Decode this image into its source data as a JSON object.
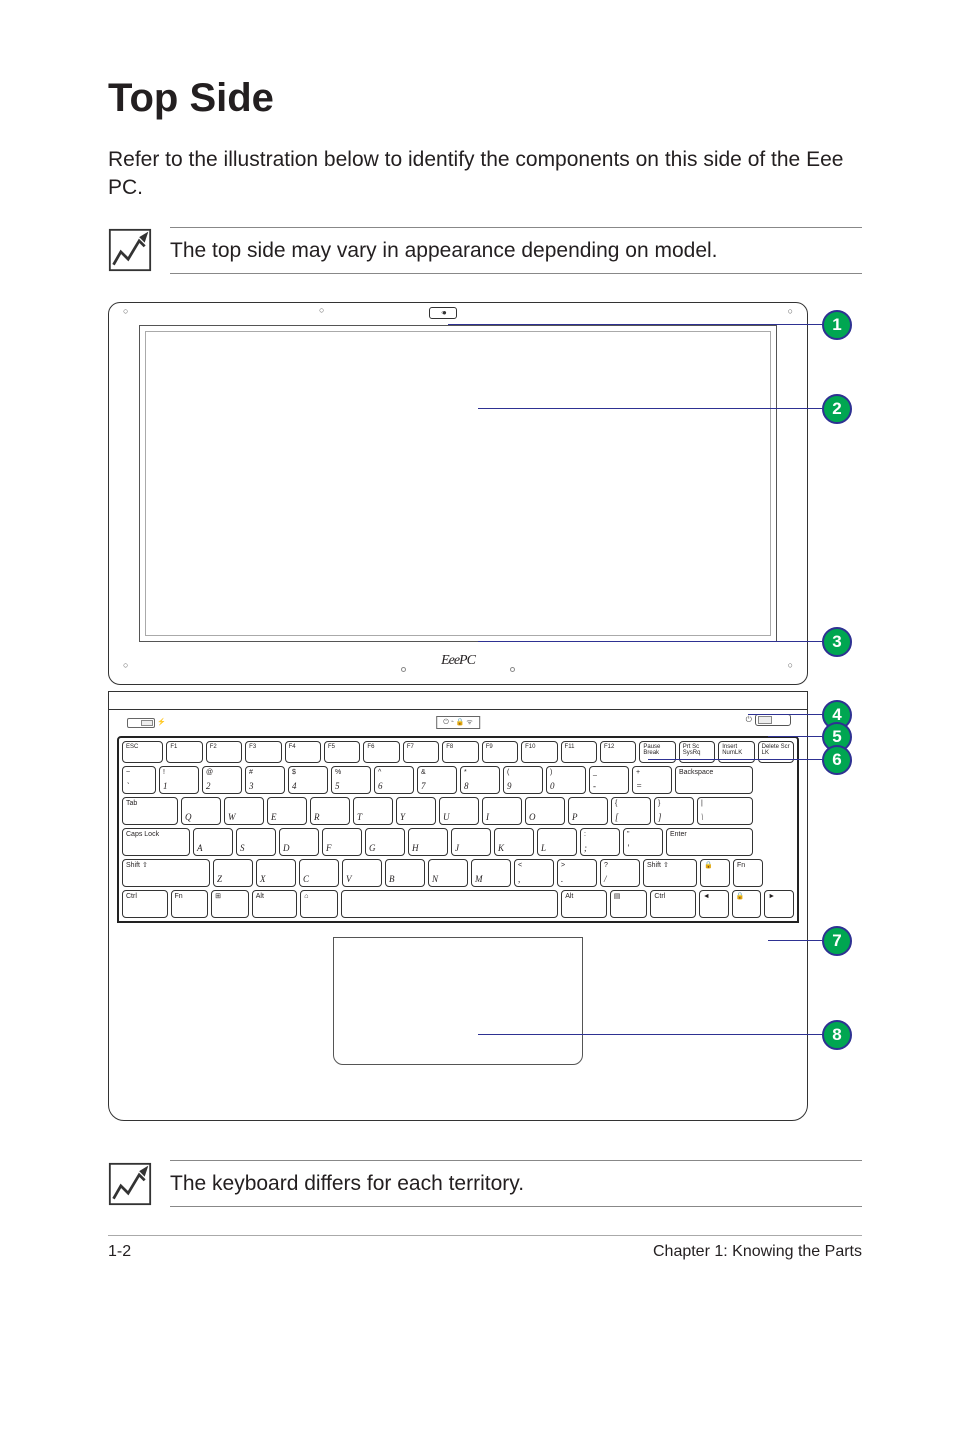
{
  "title": "Top Side",
  "intro": "Refer to the illustration below to identify the components on this side of the Eee PC.",
  "note_top": "The top side may vary in appearance depending on model.",
  "note_bottom": "The keyboard differs for each territory.",
  "brand": "EeePC",
  "callouts": [
    "1",
    "2",
    "3",
    "4",
    "5",
    "6",
    "7",
    "8"
  ],
  "callout_style": {
    "badge_bg": "#00a651",
    "badge_border": "#2e3192",
    "lead_color": "#2e3192"
  },
  "kb": {
    "r1": [
      "ESC",
      "F1",
      "F2",
      "F3",
      "F4",
      "F5",
      "F6",
      "F7",
      "F8",
      "F9",
      "F10",
      "F11",
      "F12",
      "Pause Break",
      "Prt Sc SysRq",
      "Insert NumLK",
      "Delete Scr LK"
    ],
    "r2": [
      [
        "~",
        "`"
      ],
      [
        "!",
        "1"
      ],
      [
        "@",
        "2"
      ],
      [
        "#",
        "3"
      ],
      [
        "$",
        "4"
      ],
      [
        "%",
        "5"
      ],
      [
        "^",
        "6"
      ],
      [
        "&",
        "7"
      ],
      [
        "*",
        "8"
      ],
      [
        "(",
        "9"
      ],
      [
        ")",
        "0"
      ],
      [
        "_",
        "-"
      ],
      [
        "+",
        "="
      ],
      [
        "Backspace",
        ""
      ]
    ],
    "r3": [
      [
        "Tab",
        ""
      ],
      [
        "",
        "Q"
      ],
      [
        "",
        "W"
      ],
      [
        "",
        "E"
      ],
      [
        "",
        "R"
      ],
      [
        "",
        "T"
      ],
      [
        "",
        "Y"
      ],
      [
        "",
        "U"
      ],
      [
        "",
        "I"
      ],
      [
        "",
        "O"
      ],
      [
        "",
        "P"
      ],
      [
        "{",
        "["
      ],
      [
        "}",
        "]"
      ],
      [
        "|",
        "\\"
      ]
    ],
    "r4": [
      [
        "Caps Lock",
        ""
      ],
      [
        "",
        "A"
      ],
      [
        "",
        "S"
      ],
      [
        "",
        "D"
      ],
      [
        "",
        "F"
      ],
      [
        "",
        "G"
      ],
      [
        "",
        "H"
      ],
      [
        "",
        "J"
      ],
      [
        "",
        "K"
      ],
      [
        "",
        "L"
      ],
      [
        ":",
        ";"
      ],
      [
        "\"",
        "'"
      ],
      [
        "Enter",
        ""
      ]
    ],
    "r5": [
      [
        "Shift ⇧",
        ""
      ],
      [
        "",
        "Z"
      ],
      [
        "",
        "X"
      ],
      [
        "",
        "C"
      ],
      [
        "",
        "V"
      ],
      [
        "",
        "B"
      ],
      [
        "",
        "N"
      ],
      [
        "",
        "M"
      ],
      [
        "<",
        ","
      ],
      [
        ">",
        "."
      ],
      [
        "?",
        "/"
      ],
      [
        "Shift ⇧",
        ""
      ],
      [
        "🔒",
        ""
      ],
      [
        "Fn",
        ""
      ]
    ],
    "r6": [
      [
        "Ctrl",
        ""
      ],
      [
        "Fn",
        ""
      ],
      [
        "⊞",
        ""
      ],
      [
        "Alt",
        ""
      ],
      [
        "⌂",
        ""
      ],
      [
        "",
        ""
      ],
      [
        "Alt",
        ""
      ],
      [
        "▤",
        ""
      ],
      [
        "Ctrl",
        ""
      ],
      [
        "◄",
        ""
      ],
      [
        "🔒",
        ""
      ],
      [
        "►",
        ""
      ]
    ]
  },
  "footer": {
    "left": "1-2",
    "right": "Chapter 1: Knowing the Parts"
  }
}
